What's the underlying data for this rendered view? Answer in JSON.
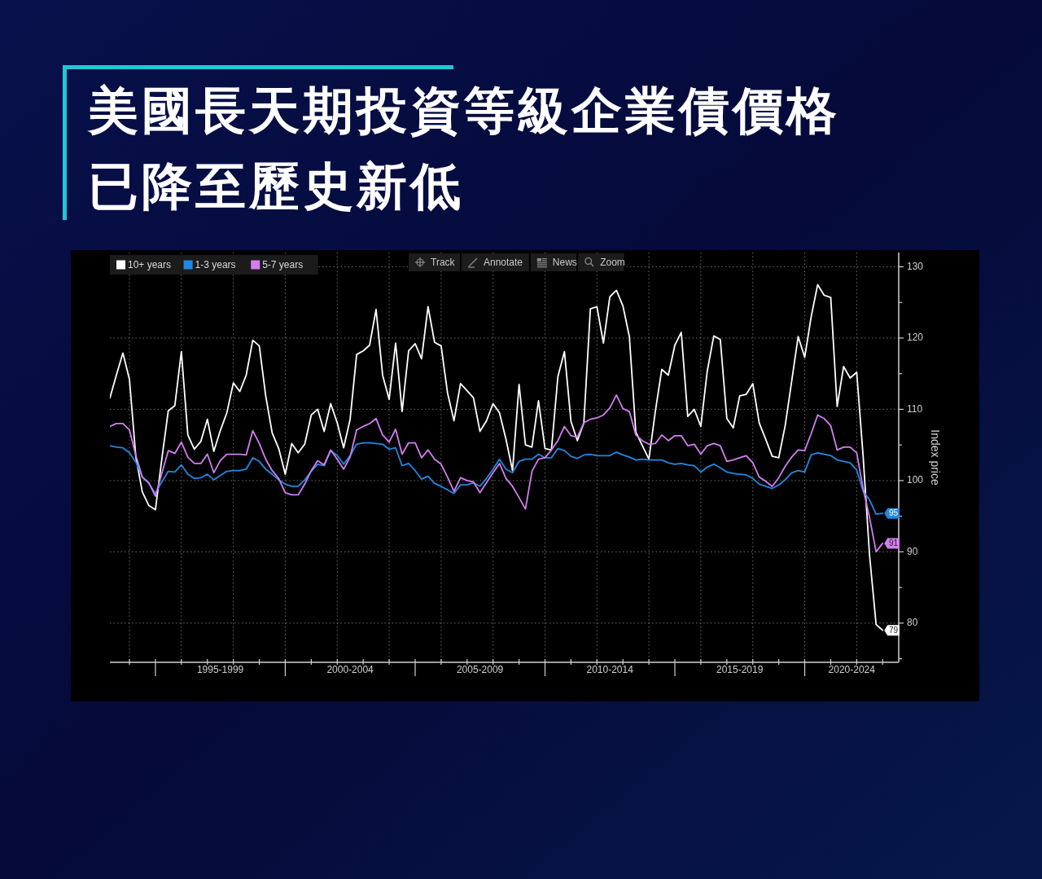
{
  "chart_data": {
    "type": "line",
    "title": "美國長天期投資等級企業債價格已降至歷史新低",
    "ylabel": "Index price",
    "annotations": [
      "Track",
      "Annotate",
      "News",
      "Zoom"
    ],
    "legend": "top left",
    "grid": true,
    "x": [
      "1993-04",
      "1993-07",
      "1993-10",
      "1994-01",
      "1994-04",
      "1994-07",
      "1994-10",
      "1995-01",
      "1995-04",
      "1995-07",
      "1995-10",
      "1996-01",
      "1996-04",
      "1996-07",
      "1996-10",
      "1997-01",
      "1997-04",
      "1997-07",
      "1997-10",
      "1998-01",
      "1998-04",
      "1998-07",
      "1998-10",
      "1999-01",
      "1999-04",
      "1999-07",
      "1999-10",
      "2000-01",
      "2000-04",
      "2000-07",
      "2000-10",
      "2001-01",
      "2001-04",
      "2001-07",
      "2001-10",
      "2002-01",
      "2002-04",
      "2002-07",
      "2002-10",
      "2003-01",
      "2003-04",
      "2003-07",
      "2003-10",
      "2004-01",
      "2004-04",
      "2004-07",
      "2004-10",
      "2005-01",
      "2005-04",
      "2005-07",
      "2005-10",
      "2006-01",
      "2006-04",
      "2006-07",
      "2006-10",
      "2007-01",
      "2007-04",
      "2007-07",
      "2007-10",
      "2008-01",
      "2008-04",
      "2008-07",
      "2008-10",
      "2009-01",
      "2009-04",
      "2009-07",
      "2009-10",
      "2010-01",
      "2010-04",
      "2010-07",
      "2010-10",
      "2011-01",
      "2011-04",
      "2011-07",
      "2011-10",
      "2012-01",
      "2012-04",
      "2012-07",
      "2012-10",
      "2013-01",
      "2013-04",
      "2013-07",
      "2013-10",
      "2014-01",
      "2014-04",
      "2014-07",
      "2014-10",
      "2015-01",
      "2015-04",
      "2015-07",
      "2015-10",
      "2016-01",
      "2016-04",
      "2016-07",
      "2016-10",
      "2017-01",
      "2017-04",
      "2017-07",
      "2017-10",
      "2018-01",
      "2018-04",
      "2018-07",
      "2018-10",
      "2019-01",
      "2019-04",
      "2019-07",
      "2019-10",
      "2020-01",
      "2020-04",
      "2020-07",
      "2020-10",
      "2021-01",
      "2021-04",
      "2021-07",
      "2021-10",
      "2022-01",
      "2022-04",
      "2022-07",
      "2022-10",
      "2023-01"
    ],
    "xlim": [
      "1993-04",
      "2023-08-15"
    ],
    "xticks": [
      {
        "value": "1994",
        "label": null
      },
      {
        "value": "1995",
        "label": null
      },
      {
        "value": "1996",
        "label": null
      },
      {
        "value": "1997",
        "label": null
      },
      {
        "value": "1997-07",
        "label": "1995-1999"
      },
      {
        "value": "1998",
        "label": null
      },
      {
        "value": "1999",
        "label": null
      },
      {
        "value": "2000",
        "label": null
      },
      {
        "value": "2001",
        "label": null
      },
      {
        "value": "2002",
        "label": null
      },
      {
        "value": "2002-07",
        "label": "2000-2004"
      },
      {
        "value": "2003",
        "label": null
      },
      {
        "value": "2004",
        "label": null
      },
      {
        "value": "2005",
        "label": null
      },
      {
        "value": "2006",
        "label": null
      },
      {
        "value": "2007",
        "label": null
      },
      {
        "value": "2007-07",
        "label": "2005-2009"
      },
      {
        "value": "2008",
        "label": null
      },
      {
        "value": "2009",
        "label": null
      },
      {
        "value": "2010",
        "label": null
      },
      {
        "value": "2011",
        "label": null
      },
      {
        "value": "2012",
        "label": null
      },
      {
        "value": "2012-07",
        "label": "2010-2014"
      },
      {
        "value": "2013",
        "label": null
      },
      {
        "value": "2014",
        "label": null
      },
      {
        "value": "2015",
        "label": null
      },
      {
        "value": "2016",
        "label": null
      },
      {
        "value": "2017",
        "label": null
      },
      {
        "value": "2017-07",
        "label": "2015-2019"
      },
      {
        "value": "2018",
        "label": null
      },
      {
        "value": "2019",
        "label": null
      },
      {
        "value": "2020",
        "label": null
      },
      {
        "value": "2021",
        "label": null
      },
      {
        "value": "2021-10-23",
        "label": "2020-2024"
      },
      {
        "value": "2022",
        "label": null
      },
      {
        "value": "2023",
        "label": null
      }
    ],
    "ylim": [
      74.5,
      132
    ],
    "yticks": [
      {
        "value": 75,
        "label": null
      },
      80,
      {
        "value": 85,
        "label": null
      },
      90,
      {
        "value": 95,
        "label": null
      },
      100,
      {
        "value": 105,
        "label": null
      },
      110,
      {
        "value": 115,
        "label": null
      },
      120,
      {
        "value": 125,
        "label": null
      },
      130
    ],
    "series": [
      {
        "name": "10+ years",
        "color": "#ffffff",
        "values": [
          111.6,
          114.8,
          117.9,
          114.2,
          103.3,
          98.4,
          96.5,
          95.9,
          103.0,
          109.8,
          110.5,
          118.1,
          106.4,
          104.4,
          105.5,
          108.6,
          104.1,
          107.0,
          109.5,
          113.7,
          112.5,
          114.8,
          119.7,
          118.9,
          111.9,
          106.7,
          104.5,
          100.9,
          105.2,
          103.9,
          105.1,
          109.2,
          110.0,
          106.9,
          110.8,
          108.1,
          104.6,
          108.6,
          117.7,
          118.2,
          119.0,
          124.0,
          114.8,
          111.4,
          119.3,
          109.7,
          118.2,
          119.2,
          117.1,
          124.4,
          119.4,
          118.9,
          112.3,
          108.4,
          113.6,
          112.6,
          111.6,
          106.9,
          108.4,
          110.8,
          109.5,
          105.8,
          101.4,
          113.5,
          105.0,
          104.7,
          111.2,
          104.5,
          104.3,
          114.6,
          118.1,
          108.3,
          105.6,
          108.1,
          124.1,
          124.4,
          119.3,
          125.8,
          126.7,
          124.5,
          120.2,
          106.8,
          104.9,
          103.0,
          109.7,
          115.6,
          114.8,
          119.0,
          120.8,
          109.0,
          110.0,
          107.6,
          115.4,
          120.3,
          119.8,
          108.7,
          107.4,
          111.9,
          112.1,
          113.6,
          108.1,
          105.8,
          103.4,
          103.2,
          107.7,
          113.9,
          120.2,
          117.3,
          123.0,
          127.5,
          126.0,
          125.7,
          110.4,
          116.0,
          114.4,
          115.2,
          103.5,
          89.5,
          79.8,
          79.0
        ],
        "value_labels": [
          null,
          null,
          null,
          null,
          null,
          null,
          null,
          null,
          null,
          null,
          null,
          null,
          null,
          null,
          null,
          null,
          null,
          null,
          null,
          null,
          null,
          null,
          null,
          null,
          null,
          null,
          null,
          null,
          null,
          null,
          null,
          null,
          null,
          null,
          null,
          null,
          null,
          null,
          null,
          null,
          null,
          null,
          null,
          null,
          null,
          null,
          null,
          null,
          null,
          null,
          null,
          null,
          null,
          null,
          null,
          null,
          null,
          null,
          null,
          null,
          null,
          null,
          null,
          null,
          null,
          null,
          null,
          null,
          null,
          null,
          null,
          null,
          null,
          null,
          null,
          null,
          null,
          null,
          null,
          null,
          null,
          null,
          null,
          null,
          null,
          null,
          null,
          null,
          null,
          null,
          null,
          null,
          null,
          null,
          null,
          null,
          null,
          null,
          null,
          null,
          null,
          null,
          null,
          null,
          null,
          null,
          null,
          null,
          null,
          null,
          null,
          null,
          null,
          null,
          null,
          null,
          null,
          null,
          null,
          "79"
        ]
      },
      {
        "name": "1-3 years",
        "color": "#2288e0",
        "values": [
          104.9,
          104.7,
          104.6,
          103.9,
          102.6,
          100.5,
          99.6,
          98.2,
          99.8,
          101.3,
          101.2,
          102.2,
          100.9,
          100.3,
          100.4,
          100.9,
          100.1,
          100.7,
          101.3,
          101.4,
          101.4,
          101.6,
          103.2,
          102.7,
          101.6,
          100.9,
          100.1,
          99.5,
          99.2,
          99.2,
          100.1,
          101.3,
          102.3,
          102.1,
          104.2,
          103.5,
          102.3,
          103.5,
          105.1,
          105.3,
          105.3,
          105.2,
          105.1,
          104.4,
          104.6,
          102.1,
          102.4,
          101.4,
          100.2,
          100.6,
          99.6,
          99.2,
          98.7,
          98.2,
          99.4,
          99.4,
          99.7,
          99.2,
          100.3,
          101.6,
          103.0,
          101.6,
          101.1,
          102.7,
          103.0,
          103.0,
          103.7,
          103.2,
          103.2,
          104.5,
          104.2,
          103.4,
          103.1,
          103.6,
          103.7,
          103.5,
          103.5,
          103.5,
          104.0,
          103.6,
          103.3,
          102.9,
          103.0,
          102.9,
          102.9,
          102.9,
          102.5,
          102.3,
          102.4,
          102.2,
          102.1,
          101.2,
          101.9,
          102.3,
          101.8,
          101.2,
          101.0,
          100.9,
          100.8,
          100.3,
          99.5,
          99.2,
          98.9,
          99.4,
          100.1,
          101.1,
          101.4,
          101.2,
          103.6,
          103.9,
          103.7,
          103.5,
          102.9,
          102.7,
          102.5,
          101.5,
          98.5,
          97.3,
          95.3,
          95.4
        ],
        "value_labels": [
          null,
          null,
          null,
          null,
          null,
          null,
          null,
          null,
          null,
          null,
          null,
          null,
          null,
          null,
          null,
          null,
          null,
          null,
          null,
          null,
          null,
          null,
          null,
          null,
          null,
          null,
          null,
          null,
          null,
          null,
          null,
          null,
          null,
          null,
          null,
          null,
          null,
          null,
          null,
          null,
          null,
          null,
          null,
          null,
          null,
          null,
          null,
          null,
          null,
          null,
          null,
          null,
          null,
          null,
          null,
          null,
          null,
          null,
          null,
          null,
          null,
          null,
          null,
          null,
          null,
          null,
          null,
          null,
          null,
          null,
          null,
          null,
          null,
          null,
          null,
          null,
          null,
          null,
          null,
          null,
          null,
          null,
          null,
          null,
          null,
          null,
          null,
          null,
          null,
          null,
          null,
          null,
          null,
          null,
          null,
          null,
          null,
          null,
          null,
          null,
          null,
          null,
          null,
          null,
          null,
          null,
          null,
          null,
          null,
          null,
          null,
          null,
          null,
          null,
          null,
          null,
          null,
          null,
          null,
          "95"
        ]
      },
      {
        "name": "5-7 years",
        "color": "#d47ef0",
        "values": [
          107.6,
          108.0,
          108.0,
          107.1,
          103.5,
          100.5,
          99.7,
          97.8,
          101.0,
          104.2,
          103.8,
          105.4,
          103.3,
          102.4,
          102.4,
          103.7,
          101.1,
          102.8,
          103.7,
          103.7,
          103.7,
          103.6,
          107.0,
          105.2,
          103.0,
          101.4,
          100.3,
          98.3,
          98.0,
          98.0,
          99.5,
          101.4,
          102.8,
          102.2,
          104.3,
          103.0,
          101.6,
          103.3,
          107.1,
          107.6,
          108.0,
          108.7,
          106.4,
          105.4,
          107.2,
          103.7,
          105.3,
          105.3,
          103.2,
          104.3,
          103.0,
          102.3,
          100.5,
          98.5,
          100.4,
          100.0,
          99.8,
          98.3,
          99.7,
          101.1,
          102.4,
          100.3,
          99.2,
          97.6,
          96.0,
          101.3,
          103.0,
          103.2,
          104.3,
          105.6,
          107.6,
          106.3,
          106.1,
          108.1,
          108.6,
          108.8,
          109.2,
          110.2,
          112.0,
          110.1,
          109.7,
          106.4,
          105.6,
          105.1,
          105.2,
          106.4,
          105.6,
          106.3,
          106.3,
          104.9,
          105.1,
          103.7,
          104.9,
          105.2,
          104.9,
          102.7,
          102.9,
          103.2,
          103.5,
          102.5,
          100.5,
          99.9,
          99.2,
          100.4,
          102.0,
          103.3,
          104.3,
          104.2,
          106.6,
          109.2,
          108.7,
          107.7,
          104.3,
          104.7,
          104.7,
          103.9,
          98.9,
          94.8,
          90.0,
          91.2
        ],
        "value_labels": [
          null,
          null,
          null,
          null,
          null,
          null,
          null,
          null,
          null,
          null,
          null,
          null,
          null,
          null,
          null,
          null,
          null,
          null,
          null,
          null,
          null,
          null,
          null,
          null,
          null,
          null,
          null,
          null,
          null,
          null,
          null,
          null,
          null,
          null,
          null,
          null,
          null,
          null,
          null,
          null,
          null,
          null,
          null,
          null,
          null,
          null,
          null,
          null,
          null,
          null,
          null,
          null,
          null,
          null,
          null,
          null,
          null,
          null,
          null,
          null,
          null,
          null,
          null,
          null,
          null,
          null,
          null,
          null,
          null,
          null,
          null,
          null,
          null,
          null,
          null,
          null,
          null,
          null,
          null,
          null,
          null,
          null,
          null,
          null,
          null,
          null,
          null,
          null,
          null,
          null,
          null,
          null,
          null,
          null,
          null,
          null,
          null,
          null,
          null,
          null,
          null,
          null,
          null,
          null,
          null,
          null,
          null,
          null,
          null,
          null,
          null,
          null,
          null,
          null,
          null,
          null,
          null,
          null,
          null,
          "91"
        ]
      }
    ]
  }
}
